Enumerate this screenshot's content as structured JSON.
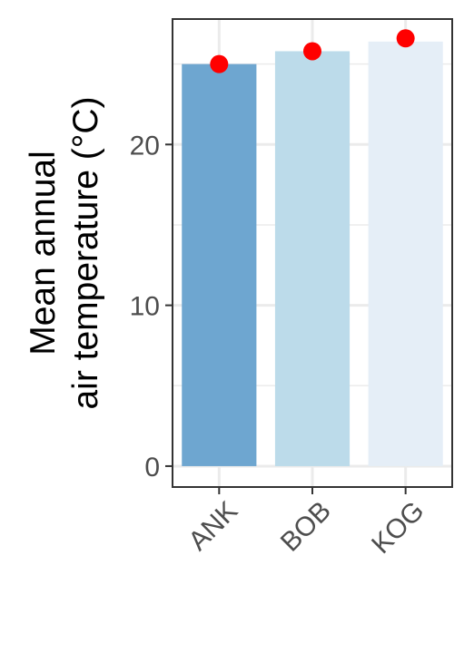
{
  "chart_data": {
    "type": "bar",
    "title": "",
    "xlabel": "",
    "ylabel_lines": [
      "Mean annual",
      "air temperature (°C)"
    ],
    "categories": [
      "ANK",
      "BOB",
      "KOG"
    ],
    "series": [
      {
        "values": [
          25.0,
          25.8,
          26.4
        ]
      }
    ],
    "points": [
      25.0,
      25.8,
      26.6
    ],
    "ylim": [
      -1.3,
      27.8
    ],
    "yticks": [
      0,
      10,
      20
    ],
    "grid": true,
    "legend": "none"
  },
  "colors": {
    "bars": [
      "#6ea6d0",
      "#bcdbea",
      "#e5eef7"
    ],
    "points": "#ff0000",
    "grid": "#ebebeb",
    "panel_border": "#333333"
  }
}
